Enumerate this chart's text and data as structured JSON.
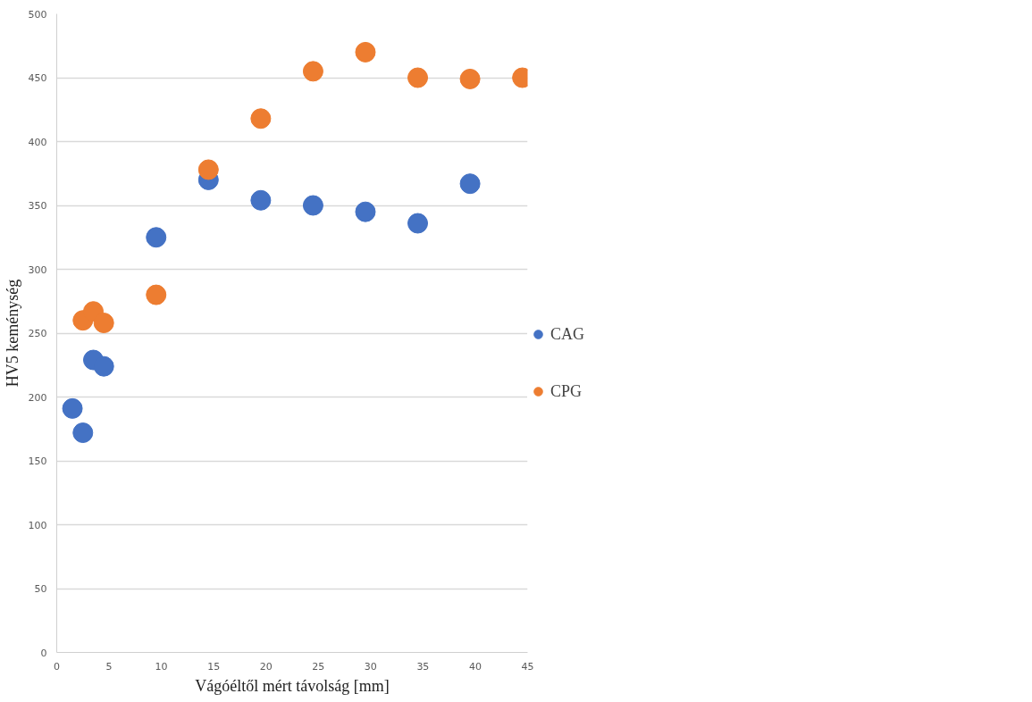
{
  "chart_data": {
    "type": "scatter",
    "xlabel": "Vágóéltől mért távolság [mm]",
    "ylabel": "HV5 keménység",
    "xlim": [
      0,
      45
    ],
    "xticks": [
      0,
      5,
      10,
      15,
      20,
      25,
      30,
      35,
      40,
      45
    ],
    "ylim": [
      0,
      500
    ],
    "yticks": [
      0,
      50,
      100,
      150,
      200,
      250,
      300,
      350,
      400,
      450,
      500
    ],
    "grid": "y",
    "legend": "right",
    "marker": "circle",
    "series": [
      {
        "name": "CAG",
        "color": "#4472c4",
        "x": [
          1.5,
          2.5,
          3.5,
          4.5,
          9.5,
          14.5,
          19.5,
          24.5,
          29.5,
          34.5,
          39.5
        ],
        "values": [
          191,
          172,
          229,
          224,
          325,
          370,
          354,
          350,
          345,
          336,
          367
        ]
      },
      {
        "name": "CPG",
        "color": "#ed7d31",
        "x": [
          2.5,
          3.5,
          4.5,
          9.5,
          14.5,
          19.5,
          24.5,
          29.5,
          34.5,
          39.5,
          44.5
        ],
        "values": [
          260,
          267,
          258,
          280,
          378,
          418,
          455,
          470,
          450,
          449,
          450
        ]
      }
    ]
  }
}
